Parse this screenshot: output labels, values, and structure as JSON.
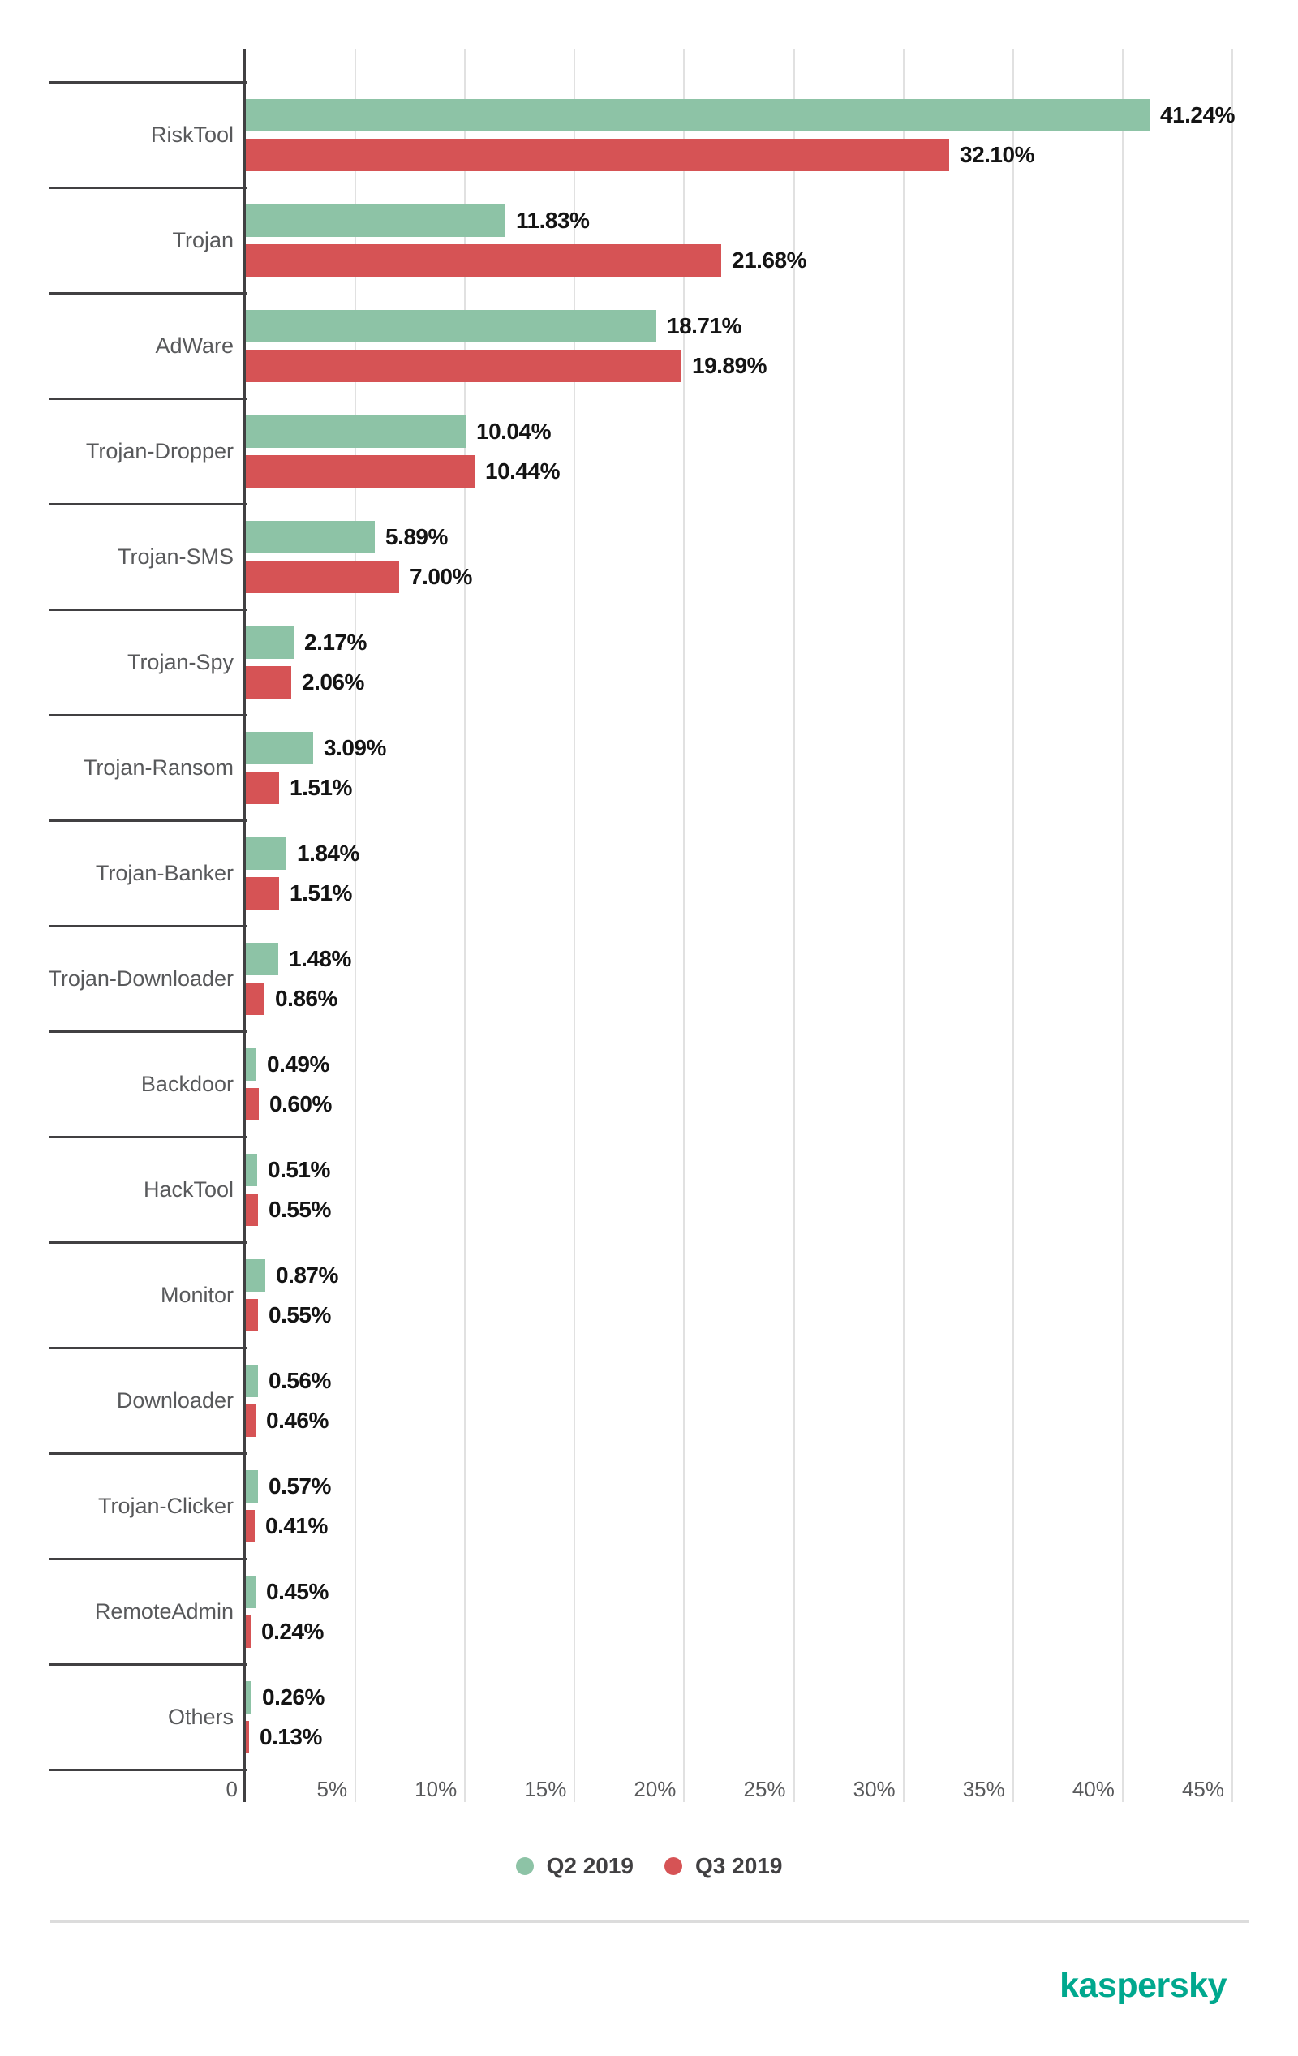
{
  "chart_data": {
    "type": "bar",
    "orientation": "horizontal",
    "title": "",
    "xlabel": "",
    "ylabel": "",
    "xlim": [
      0,
      45
    ],
    "grid": true,
    "legend_position": "bottom-center",
    "categories": [
      "RiskTool",
      "Trojan",
      "AdWare",
      "Trojan-Dropper",
      "Trojan-SMS",
      "Trojan-Spy",
      "Trojan-Ransom",
      "Trojan-Banker",
      "Trojan-Downloader",
      "Backdoor",
      "HackTool",
      "Monitor",
      "Downloader",
      "Trojan-Clicker",
      "RemoteAdmin",
      "Others"
    ],
    "series": [
      {
        "name": "Q2 2019",
        "color": "#8dc3a6",
        "values": [
          41.24,
          11.83,
          18.71,
          10.04,
          5.89,
          2.17,
          3.09,
          1.84,
          1.48,
          0.49,
          0.51,
          0.87,
          0.56,
          0.57,
          0.45,
          0.26
        ],
        "labels": [
          "41.24%",
          "11.83%",
          "18.71%",
          "10.04%",
          "5.89%",
          "2.17%",
          "3.09%",
          "1.84%",
          "1.48%",
          "0.49%",
          "0.51%",
          "0.87%",
          "0.56%",
          "0.57%",
          "0.45%",
          "0.26%"
        ]
      },
      {
        "name": "Q3 2019",
        "color": "#d65355",
        "values": [
          32.1,
          21.68,
          19.89,
          10.44,
          7.0,
          2.06,
          1.51,
          1.51,
          0.86,
          0.6,
          0.55,
          0.55,
          0.46,
          0.41,
          0.24,
          0.13
        ],
        "labels": [
          "32.10%",
          "21.68%",
          "19.89%",
          "10.44%",
          "7.00%",
          "2.06%",
          "1.51%",
          "1.51%",
          "0.86%",
          "0.60%",
          "0.55%",
          "0.55%",
          "0.46%",
          "0.41%",
          "0.24%",
          "0.13%"
        ]
      }
    ],
    "x_ticks": [
      {
        "label": "0",
        "value": 0
      },
      {
        "label": "5%",
        "value": 5
      },
      {
        "label": "10%",
        "value": 10
      },
      {
        "label": "15%",
        "value": 15
      },
      {
        "label": "20%",
        "value": 20
      },
      {
        "label": "25%",
        "value": 25
      },
      {
        "label": "30%",
        "value": 30
      },
      {
        "label": "35%",
        "value": 35
      },
      {
        "label": "40%",
        "value": 40
      },
      {
        "label": "45%",
        "value": 45
      }
    ]
  },
  "legend": {
    "items": [
      {
        "label": "Q2 2019",
        "color": "#8dc3a6"
      },
      {
        "label": "Q3 2019",
        "color": "#d65355"
      }
    ]
  },
  "footer": {
    "logo_text": "kaspersky",
    "logo_color": "#00a88e"
  },
  "colors": {
    "axis": "#414042",
    "separator": "#414042",
    "gridline": "#e1e1e1",
    "category_label": "#58595b",
    "tick_label": "#58595b",
    "value_label": "#141414",
    "divider": "#dcdcdc",
    "background": "#ffffff"
  }
}
